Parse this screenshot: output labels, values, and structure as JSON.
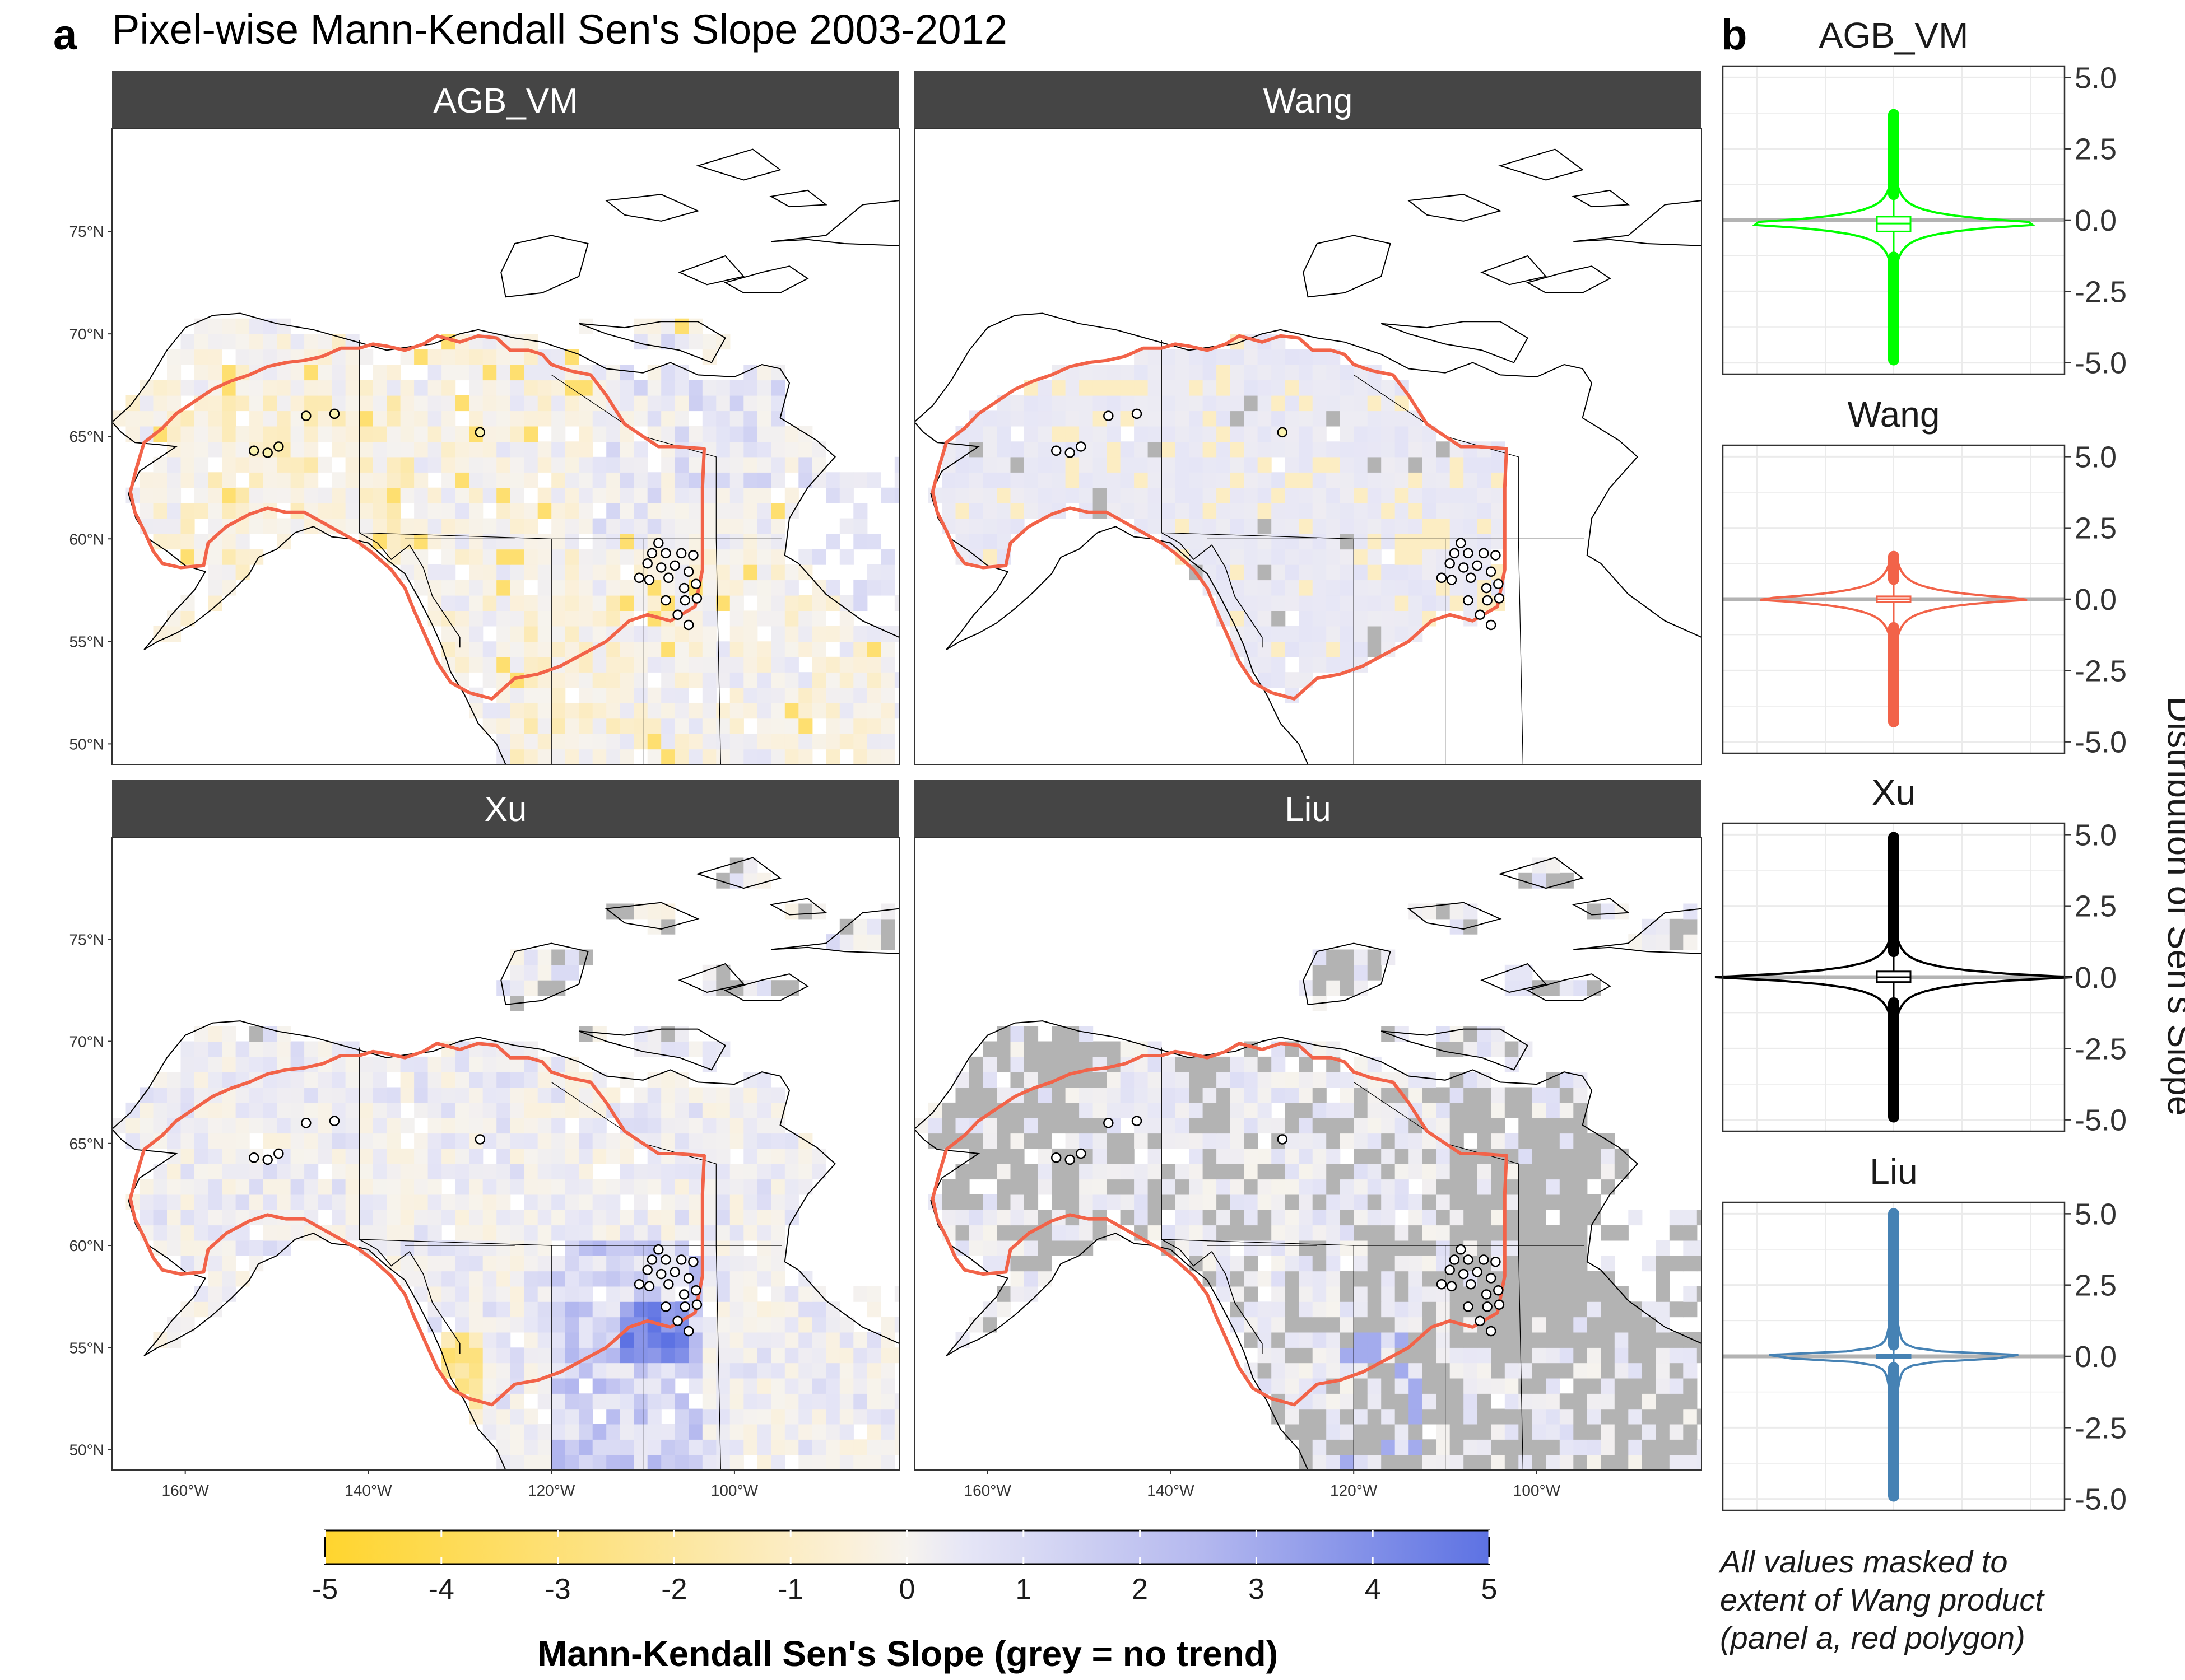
{
  "panel_a": {
    "label": "a",
    "title": "Pixel-wise Mann-Kendall Sen's Slope 2003-2012"
  },
  "panel_b": {
    "label": "b",
    "y_axis_title": "Distribution of Sen's Slope",
    "note_lines": [
      "All values masked to",
      "extent of Wang product",
      "(panel a, red polygon)"
    ]
  },
  "colors": {
    "strip_bg": "#454545",
    "boundary": "#f26349",
    "no_trend": "#b3b3b3",
    "negative_max": "#ffd52e",
    "positive_max": "#5d72e3",
    "neutral": "#f6f3ee",
    "AGB_VM": "#00ff00",
    "Wang": "#f26349",
    "Xu": "#000000",
    "Liu": "#4682b4"
  },
  "chart_data": [
    {
      "type": "heatmap",
      "description_of_panels": "facets",
      "facets": [
        "AGB_VM",
        "Wang",
        "Xu",
        "Liu"
      ],
      "x_tick_labels": [
        "160°W",
        "140°W",
        "120°W",
        "100°W"
      ],
      "x_tick_values": [
        -160,
        -140,
        -120,
        -100
      ],
      "y_tick_labels": [
        "50°N",
        "55°N",
        "60°N",
        "65°N",
        "70°N",
        "75°N"
      ],
      "y_tick_values": [
        50,
        55,
        60,
        65,
        70,
        75
      ],
      "xlim": [
        -168,
        -82
      ],
      "ylim": [
        49,
        80
      ],
      "colorbar": {
        "title": "Mann-Kendall Sen's Slope (grey = no trend)",
        "ticks": [
          -5,
          -4,
          -3,
          -2,
          -1,
          0,
          1,
          2,
          3,
          4,
          5
        ],
        "tick_labels": [
          "-5",
          "-4",
          "-3",
          "-2",
          "-1",
          "0",
          "1",
          "2",
          "3",
          "4",
          "5"
        ],
        "range": [
          -5,
          5
        ]
      },
      "sites": [
        [
          -152.5,
          64.3
        ],
        [
          -151,
          64.2
        ],
        [
          -149.8,
          64.5
        ],
        [
          -146.8,
          66
        ],
        [
          -143.7,
          66.1
        ],
        [
          -127.8,
          65.2
        ],
        [
          -108.3,
          59.8
        ],
        [
          -109,
          59.3
        ],
        [
          -107.5,
          59.3
        ],
        [
          -105.8,
          59.3
        ],
        [
          -104.5,
          59.2
        ],
        [
          -109.5,
          58.8
        ],
        [
          -108,
          58.6
        ],
        [
          -106.5,
          58.7
        ],
        [
          -105,
          58.4
        ],
        [
          -110.4,
          58.1
        ],
        [
          -109.3,
          58
        ],
        [
          -107.2,
          58.1
        ],
        [
          -105.5,
          57.6
        ],
        [
          -104.2,
          57.8
        ],
        [
          -107.5,
          57
        ],
        [
          -105.4,
          57
        ],
        [
          -104.1,
          57.1
        ],
        [
          -106.2,
          56.3
        ],
        [
          -105,
          55.8
        ]
      ]
    },
    {
      "type": "violin",
      "panels": [
        "AGB_VM",
        "Wang",
        "Xu",
        "Liu"
      ],
      "y_ticks": [
        5.0,
        2.5,
        0.0,
        -2.5,
        -5.0
      ],
      "y_tick_labels": [
        "5.0",
        "2.5",
        "0.0",
        "-2.5",
        "-5.0"
      ],
      "ylim": [
        -5.4,
        5.4
      ],
      "series": [
        {
          "name": "AGB_VM",
          "min": -4.9,
          "max": 3.7,
          "q1": -0.4,
          "median": -0.12,
          "q3": 0.12,
          "whisker_low": -1.3,
          "whisker_high": 0.9
        },
        {
          "name": "Wang",
          "min": -4.3,
          "max": 1.5,
          "q1": -0.1,
          "median": 0.0,
          "q3": 0.1,
          "whisker_low": -1.0,
          "whisker_high": 0.7
        },
        {
          "name": "Xu",
          "min": -4.9,
          "max": 4.9,
          "q1": -0.17,
          "median": 0.0,
          "q3": 0.2,
          "whisker_low": -0.9,
          "whisker_high": 0.9
        },
        {
          "name": "Liu",
          "min": -4.9,
          "max": 5.0,
          "q1": -0.05,
          "median": 0.0,
          "q3": 0.05,
          "whisker_low": -0.4,
          "whisker_high": 0.4
        }
      ]
    }
  ]
}
